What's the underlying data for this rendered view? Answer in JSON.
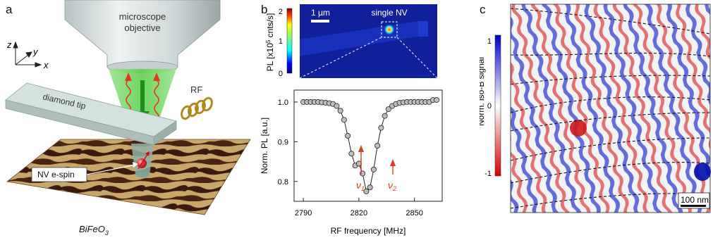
{
  "panels": {
    "a": {
      "letter": "a",
      "objective_label_1": "microscope",
      "objective_label_2": "objective",
      "axis_z": "z",
      "axis_y": "y",
      "axis_x": "x",
      "diamond_label": "diamond tip",
      "rf_label": "RF",
      "nv_label": "NV e-spin",
      "sample_label": "BiFeO",
      "sample_sub": "3"
    },
    "b": {
      "letter": "b",
      "pl_label": "PL [x10",
      "pl_exp": "5",
      "pl_unit": " cnts/s]",
      "colorbar_ticks": [
        "2",
        "1",
        "0"
      ],
      "scale_label": "1 µm",
      "single_nv_label": "single NV",
      "spectrum": {
        "ylabel": "Norm. PL [a.u.]",
        "xlabel": "RF frequency [MHz]",
        "xticks": [
          "2790",
          "2820",
          "2850"
        ],
        "yticks": [
          "1.0",
          "0.9",
          "0.8"
        ],
        "nu1": "ν",
        "nu1_sub": "1",
        "nu2": "ν",
        "nu2_sub": "2"
      }
    },
    "c": {
      "letter": "c",
      "colorbar_label": "Norm. iso-B signal",
      "colorbar_ticks": [
        "1",
        "0",
        "-1"
      ],
      "scale_label": "100 nm"
    }
  },
  "chart_data": {
    "type": "scatter",
    "xlabel": "RF frequency [MHz]",
    "ylabel": "Norm. PL [a.u.]",
    "xlim": [
      2785,
      2865
    ],
    "ylim": [
      0.75,
      1.03
    ],
    "x": [
      2790,
      2792,
      2794,
      2796,
      2798,
      2800,
      2802,
      2804,
      2806,
      2808,
      2810,
      2812,
      2814,
      2816,
      2818,
      2820,
      2822,
      2824,
      2826,
      2828,
      2830,
      2832,
      2834,
      2836,
      2838,
      2840,
      2842,
      2844,
      2846,
      2848,
      2850,
      2852,
      2854,
      2856,
      2858,
      2860,
      2862
    ],
    "y": [
      1.0,
      1.0,
      1.0,
      1.0,
      1.0,
      0.999,
      0.998,
      0.997,
      0.995,
      0.99,
      0.978,
      0.955,
      0.915,
      0.87,
      0.84,
      0.845,
      0.82,
      0.775,
      0.785,
      0.83,
      0.89,
      0.935,
      0.965,
      0.982,
      0.99,
      0.995,
      0.998,
      0.999,
      1.0,
      1.0,
      1.0,
      1.0,
      1.0,
      1.0,
      1.0,
      1.005,
      1.005
    ],
    "grid": false
  }
}
